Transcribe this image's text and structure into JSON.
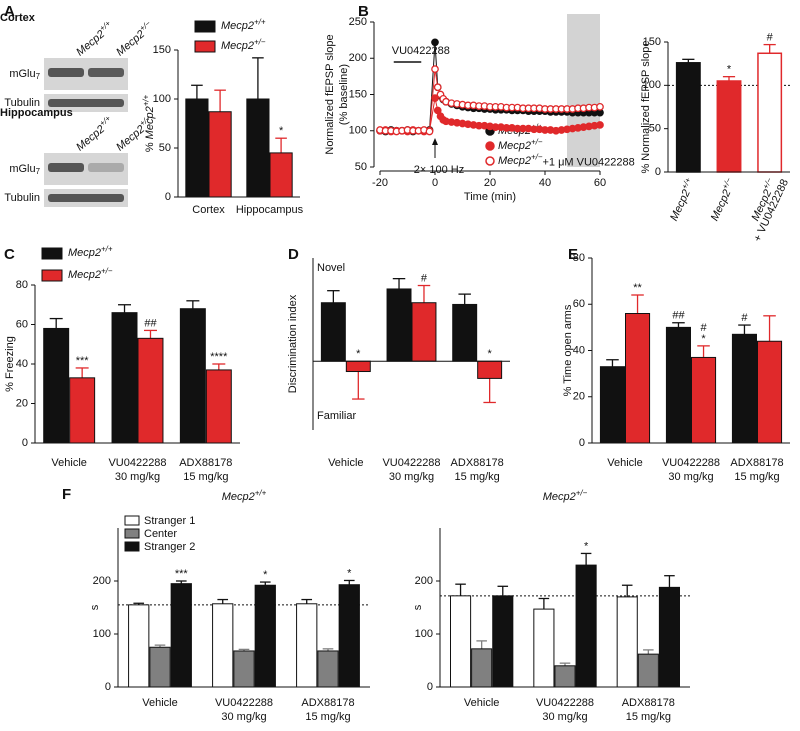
{
  "chart_data": [
    {
      "panel": "A",
      "type": "bar",
      "blot": {
        "regions": [
          "Cortex",
          "Hippocampus"
        ],
        "bands": [
          "mGlu7",
          "Tubulin"
        ],
        "lanes": [
          "Mecp2+/+",
          "Mecp2+/−"
        ]
      },
      "categories": [
        "Cortex",
        "Hippocampus"
      ],
      "series": [
        {
          "name": "Mecp2+/+",
          "color": "#111111",
          "values": [
            100,
            100
          ],
          "errors": [
            14,
            42
          ]
        },
        {
          "name": "Mecp2+/−",
          "color": "#e0292b",
          "values": [
            87,
            45
          ],
          "errors": [
            22,
            15
          ],
          "significance": [
            null,
            "*"
          ]
        }
      ],
      "ylabel": "% Mecp2+/+",
      "ylim": [
        0,
        150
      ],
      "yticks": [
        0,
        50,
        100,
        150
      ],
      "legend": "top"
    },
    {
      "panel": "B",
      "type": "line",
      "ylabel": [
        "Normalized fEPSP slope",
        "(% baseline)"
      ],
      "xlabel": "Time (min)",
      "x": [
        -20,
        -18,
        -16,
        -14,
        -12,
        -10,
        -8,
        -6,
        -4,
        -2,
        0,
        1,
        2,
        3,
        4,
        6,
        8,
        10,
        12,
        14,
        16,
        18,
        20,
        22,
        24,
        26,
        28,
        30,
        32,
        34,
        36,
        38,
        40,
        42,
        44,
        46,
        48,
        50,
        52,
        54,
        56,
        58,
        60
      ],
      "series": [
        {
          "name": "Mecp2+/+",
          "color": "#111111",
          "marker": "filled",
          "values": [
            100,
            99,
            101,
            100,
            100,
            101,
            99,
            100,
            100,
            101,
            222,
            160,
            148,
            143,
            140,
            137,
            135,
            133,
            132,
            131,
            131,
            130,
            130,
            129,
            129,
            129,
            128,
            128,
            128,
            127,
            127,
            127,
            127,
            126,
            126,
            126,
            126,
            125,
            125,
            125,
            125,
            125,
            125
          ]
        },
        {
          "name": "Mecp2+/−",
          "color": "#e0292b",
          "marker": "filled",
          "values": [
            100,
            101,
            99,
            100,
            100,
            99,
            101,
            100,
            99,
            100,
            145,
            128,
            120,
            115,
            113,
            112,
            111,
            110,
            109,
            108,
            107,
            107,
            106,
            105,
            105,
            104,
            104,
            103,
            103,
            103,
            102,
            102,
            101,
            101,
            100,
            101,
            102,
            103,
            104,
            105,
            106,
            107,
            108
          ]
        },
        {
          "name": "Mecp2+/−+1 μM VU0422288",
          "color": "#e0292b",
          "marker": "open",
          "values": [
            101,
            100,
            100,
            99,
            100,
            101,
            100,
            100,
            101,
            99,
            185,
            160,
            150,
            144,
            140,
            138,
            137,
            136,
            135,
            135,
            134,
            134,
            133,
            133,
            133,
            132,
            132,
            132,
            131,
            131,
            131,
            131,
            130,
            130,
            130,
            130,
            130,
            130,
            131,
            131,
            132,
            132,
            133
          ]
        }
      ],
      "xlim": [
        -20,
        60
      ],
      "xticks": [
        -20,
        0,
        20,
        40,
        60
      ],
      "ylim": [
        50,
        250
      ],
      "yticks": [
        50,
        100,
        150,
        200,
        250
      ],
      "shaded_region": [
        48,
        60
      ],
      "drug": {
        "label": "VU0422288",
        "span": [
          -15,
          -5
        ]
      },
      "stimulus": {
        "label": "2× 100 Hz",
        "x": 0
      },
      "legend": "lower right"
    },
    {
      "type": "bar",
      "categories": [
        "Mecp2+/+",
        "Mecp2+/−",
        "Mecp2+/−"
      ],
      "sublabels": [
        null,
        null,
        "+ VU0422288"
      ],
      "values": [
        126,
        105,
        137
      ],
      "errors": [
        4,
        5,
        10
      ],
      "colors": [
        "#111111",
        "#e0292b",
        "#ffffff"
      ],
      "outline_colors": [
        "#111111",
        "#e0292b",
        "#e0292b"
      ],
      "significance": [
        null,
        "*",
        "#"
      ],
      "ylabel": "% Normalized fEPSP slope",
      "ylim": [
        0,
        150
      ],
      "yticks": [
        0,
        50,
        100,
        150
      ],
      "reference_line": 100,
      "rotate_labels": true
    },
    {
      "panel": "C",
      "type": "bar",
      "categories": [
        "Vehicle",
        "VU0422288",
        "ADX88178"
      ],
      "sublabels": [
        null,
        "30 mg/kg",
        "15 mg/kg"
      ],
      "series": [
        {
          "name": "Mecp2+/+",
          "color": "#111111",
          "values": [
            58,
            66,
            68
          ],
          "errors": [
            5,
            4,
            4
          ]
        },
        {
          "name": "Mecp2+/−",
          "color": "#e0292b",
          "values": [
            33,
            53,
            37
          ],
          "errors": [
            5,
            4,
            3
          ],
          "significance": [
            "***",
            "##",
            "****"
          ]
        }
      ],
      "ylabel": "% Freezing",
      "ylim": [
        0,
        80
      ],
      "yticks": [
        0,
        20,
        40,
        60,
        80
      ],
      "legend": "top-left"
    },
    {
      "panel": "D",
      "type": "bar",
      "categories": [
        "Vehicle",
        "VU0422288",
        "ADX88178"
      ],
      "sublabels": [
        null,
        "30 mg/kg",
        "15 mg/kg"
      ],
      "series": [
        {
          "name": "Mecp2+/+",
          "color": "#111111",
          "values": [
            0.17,
            0.21,
            0.165
          ],
          "errors": [
            0.035,
            0.03,
            0.03
          ]
        },
        {
          "name": "Mecp2+/−",
          "color": "#e0292b",
          "values": [
            -0.03,
            0.17,
            -0.05
          ],
          "errors": [
            0.08,
            0.05,
            0.07
          ],
          "significance": [
            "*",
            "#",
            "*"
          ]
        }
      ],
      "ylabel": "Discrimination index",
      "ylim": [
        -0.2,
        0.3
      ],
      "top_label": "Novel",
      "bottom_label": "Familiar"
    },
    {
      "panel": "E",
      "type": "bar",
      "categories": [
        "Vehicle",
        "VU0422288",
        "ADX88178"
      ],
      "sublabels": [
        null,
        "30 mg/kg",
        "15 mg/kg"
      ],
      "series": [
        {
          "name": "Mecp2+/+",
          "color": "#111111",
          "values": [
            33,
            50,
            47
          ],
          "errors": [
            3,
            2,
            4
          ],
          "significance": [
            null,
            "##",
            "#"
          ]
        },
        {
          "name": "Mecp2+/−",
          "color": "#e0292b",
          "values": [
            56,
            37,
            44
          ],
          "errors": [
            8,
            5,
            11
          ],
          "significance": [
            "**",
            "*",
            null
          ],
          "significance_upper": [
            null,
            "#",
            null
          ]
        }
      ],
      "ylabel": "% Time open arms",
      "ylim": [
        0,
        80
      ],
      "yticks": [
        0,
        20,
        40,
        60,
        80
      ]
    },
    {
      "panel": "F",
      "type": "bar",
      "title": "Mecp2+/+",
      "categories": [
        "Vehicle",
        "VU0422288",
        "ADX88178"
      ],
      "sublabels": [
        null,
        "30 mg/kg",
        "15 mg/kg"
      ],
      "series": [
        {
          "name": "Stranger 1",
          "color": "#ffffff",
          "values": [
            155,
            157,
            157
          ],
          "errors": [
            3,
            8,
            8
          ]
        },
        {
          "name": "Center",
          "color": "#808080",
          "values": [
            75,
            68,
            68
          ],
          "errors": [
            4,
            3,
            4
          ]
        },
        {
          "name": "Stranger 2",
          "color": "#111111",
          "values": [
            195,
            192,
            193
          ],
          "errors": [
            5,
            6,
            8
          ],
          "significance": [
            "***",
            "*",
            "*"
          ]
        }
      ],
      "ylabel": "s",
      "ylim": [
        0,
        300
      ],
      "yticks": [
        0,
        100,
        200
      ],
      "reference_line": 155,
      "legend": "top-left"
    },
    {
      "type": "bar",
      "title": "Mecp2+/−",
      "categories": [
        "Vehicle",
        "VU0422288",
        "ADX88178"
      ],
      "sublabels": [
        null,
        "30 mg/kg",
        "15 mg/kg"
      ],
      "series": [
        {
          "color": "#ffffff",
          "values": [
            172,
            147,
            170
          ],
          "errors": [
            22,
            20,
            22
          ]
        },
        {
          "color": "#808080",
          "values": [
            72,
            40,
            62
          ],
          "errors": [
            15,
            5,
            8
          ]
        },
        {
          "color": "#111111",
          "values": [
            172,
            230,
            188
          ],
          "errors": [
            18,
            22,
            22
          ],
          "significance": [
            null,
            "*",
            null
          ]
        }
      ],
      "ylabel": "s",
      "ylim": [
        0,
        300
      ],
      "yticks": [
        0,
        100,
        200
      ],
      "reference_line": 172
    }
  ]
}
